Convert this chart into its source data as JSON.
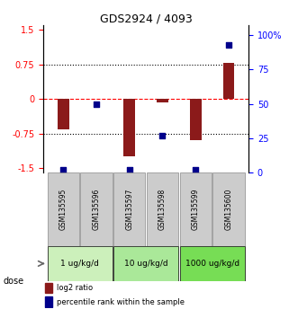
{
  "title": "GDS2924 / 4093",
  "samples": [
    "GSM135595",
    "GSM135596",
    "GSM135597",
    "GSM135598",
    "GSM135599",
    "GSM135600"
  ],
  "log2_ratios": [
    -0.65,
    0.0,
    -1.25,
    -0.08,
    -0.9,
    0.78
  ],
  "percentile_ranks": [
    2,
    50,
    2,
    27,
    2,
    93
  ],
  "bar_color": "#8b1a1a",
  "dot_color": "#00008b",
  "ylim_left": [
    -1.6,
    1.6
  ],
  "ylim_right": [
    0,
    107
  ],
  "yticks_left": [
    -1.5,
    -0.75,
    0,
    0.75,
    1.5
  ],
  "ytick_labels_left": [
    "-1.5",
    "-0.75",
    "0",
    "0.75",
    "1.5"
  ],
  "yticks_right": [
    0,
    25,
    50,
    75,
    100
  ],
  "ytick_labels_right": [
    "0",
    "25",
    "50",
    "75",
    "100%"
  ],
  "dose_groups": [
    {
      "label": "1 ug/kg/d",
      "start": 0,
      "end": 1,
      "color": "#ccf0bb"
    },
    {
      "label": "10 ug/kg/d",
      "start": 2,
      "end": 3,
      "color": "#aae899"
    },
    {
      "label": "1000 ug/kg/d",
      "start": 4,
      "end": 5,
      "color": "#77dd55"
    }
  ],
  "sample_area_color": "#cccccc",
  "sample_area_border": "#888888",
  "legend_bar_label": "log2 ratio",
  "legend_dot_label": "percentile rank within the sample",
  "dose_label": "dose"
}
